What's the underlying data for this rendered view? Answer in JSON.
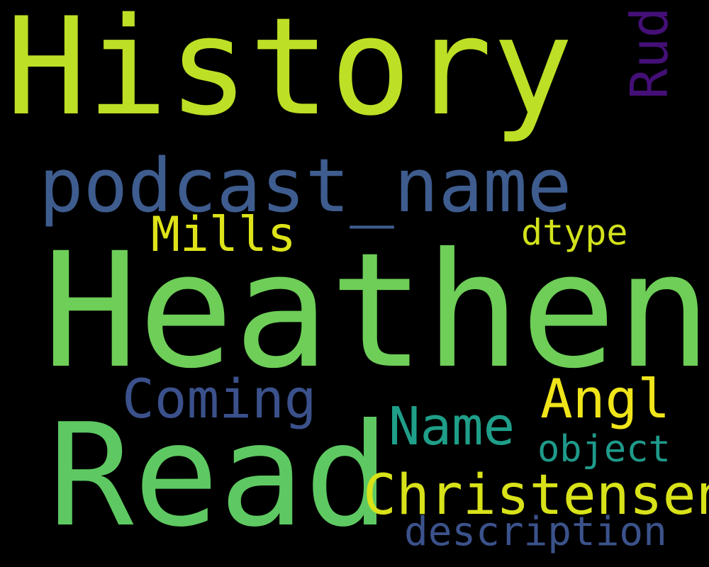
{
  "words": [
    {
      "text": "History",
      "color": "#bddf26",
      "orientation": "horizontal"
    },
    {
      "text": "Rud",
      "color": "#440f76",
      "orientation": "vertical"
    },
    {
      "text": "podcast_name",
      "color": "#3e5c8e",
      "orientation": "horizontal"
    },
    {
      "text": "Mills",
      "color": "#dde318",
      "orientation": "horizontal"
    },
    {
      "text": "dtype",
      "color": "#d2e21b",
      "orientation": "horizontal"
    },
    {
      "text": "Heathen",
      "color": "#6ece58",
      "orientation": "horizontal"
    },
    {
      "text": "Coming",
      "color": "#3b518b",
      "orientation": "horizontal"
    },
    {
      "text": "Angl",
      "color": "#f0e51a",
      "orientation": "horizontal"
    },
    {
      "text": "Name",
      "color": "#1f9e89",
      "orientation": "horizontal"
    },
    {
      "text": "Read",
      "color": "#5ec962",
      "orientation": "horizontal"
    },
    {
      "text": "object",
      "color": "#1f9a8a",
      "orientation": "horizontal"
    },
    {
      "text": "Christensen",
      "color": "#d8e219",
      "orientation": "horizontal"
    },
    {
      "text": "description",
      "color": "#3b528b",
      "orientation": "horizontal"
    }
  ],
  "background_color": "#000000"
}
